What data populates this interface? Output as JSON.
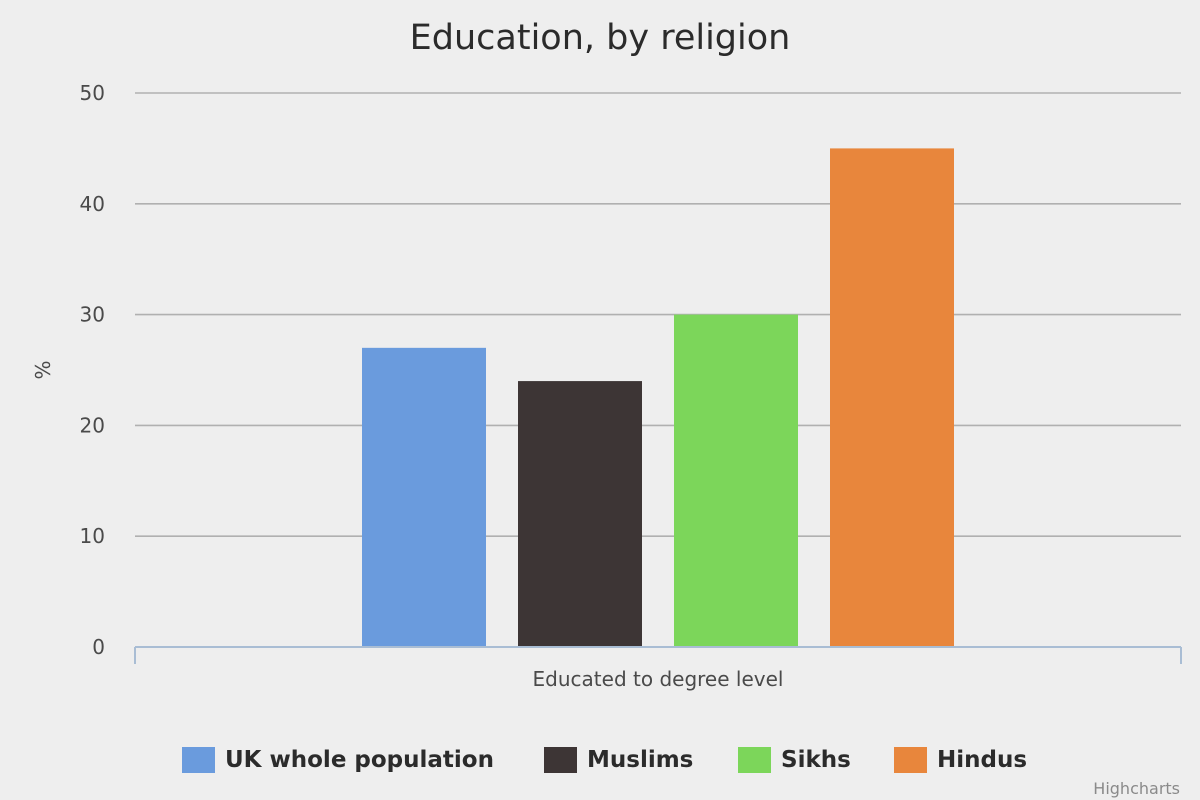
{
  "chart_data": {
    "type": "bar",
    "title": "Education, by religion",
    "xlabel": "",
    "ylabel": "%",
    "categories": [
      "Educated to degree level"
    ],
    "ylim": [
      0,
      50
    ],
    "yticks": [
      0,
      10,
      20,
      30,
      40,
      50
    ],
    "grid": true,
    "legend_position": "bottom",
    "series": [
      {
        "name": "UK whole population",
        "values": [
          27
        ],
        "color": "#6a9bdd"
      },
      {
        "name": "Muslims",
        "values": [
          24
        ],
        "color": "#3d3535"
      },
      {
        "name": "Sikhs",
        "values": [
          30
        ],
        "color": "#7cd65a"
      },
      {
        "name": "Hindus",
        "values": [
          45
        ],
        "color": "#e8863c"
      }
    ]
  },
  "credits": "Highcharts"
}
